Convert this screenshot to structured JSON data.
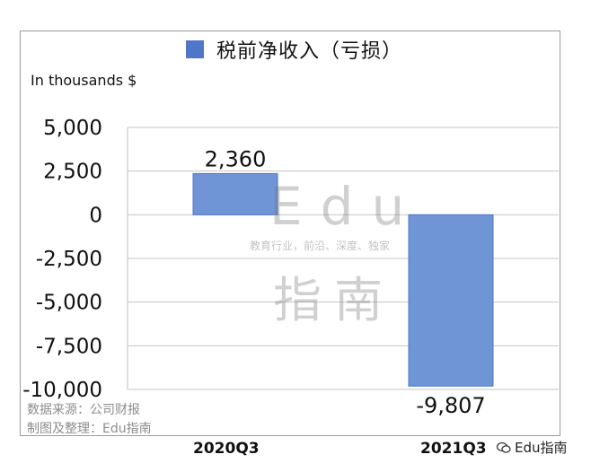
{
  "legend": {
    "label": "税前净收入（亏损）",
    "color": "#4f76c8"
  },
  "unit_label": "In thousands $",
  "source_lines": [
    "数据来源：公司财报",
    "制图及整理：Edu指南"
  ],
  "watermark": {
    "main": "Edu",
    "sub": "教育行业，前沿、深度、独家",
    "cn": "指南"
  },
  "brand": {
    "text": "Edu指南",
    "icon": "wechat-icon"
  },
  "chart_data": {
    "type": "bar",
    "categories": [
      "2020Q3",
      "2021Q3"
    ],
    "series": [
      {
        "name": "税前净收入（亏损）",
        "values": [
          2360,
          -9807
        ]
      }
    ],
    "data_labels": [
      "2,360",
      "-9,807"
    ],
    "yticks": [
      5000,
      2500,
      0,
      -2500,
      -5000,
      -7500,
      -10000
    ],
    "ytick_labels": [
      "5,000",
      "2,500",
      "0",
      "-2,500",
      "-5,000",
      "-7,500",
      "-10,000"
    ],
    "ylim": [
      -10000,
      5000
    ],
    "ylabel": "In thousands $",
    "grid": true,
    "bar_color": "#6f95d6"
  }
}
